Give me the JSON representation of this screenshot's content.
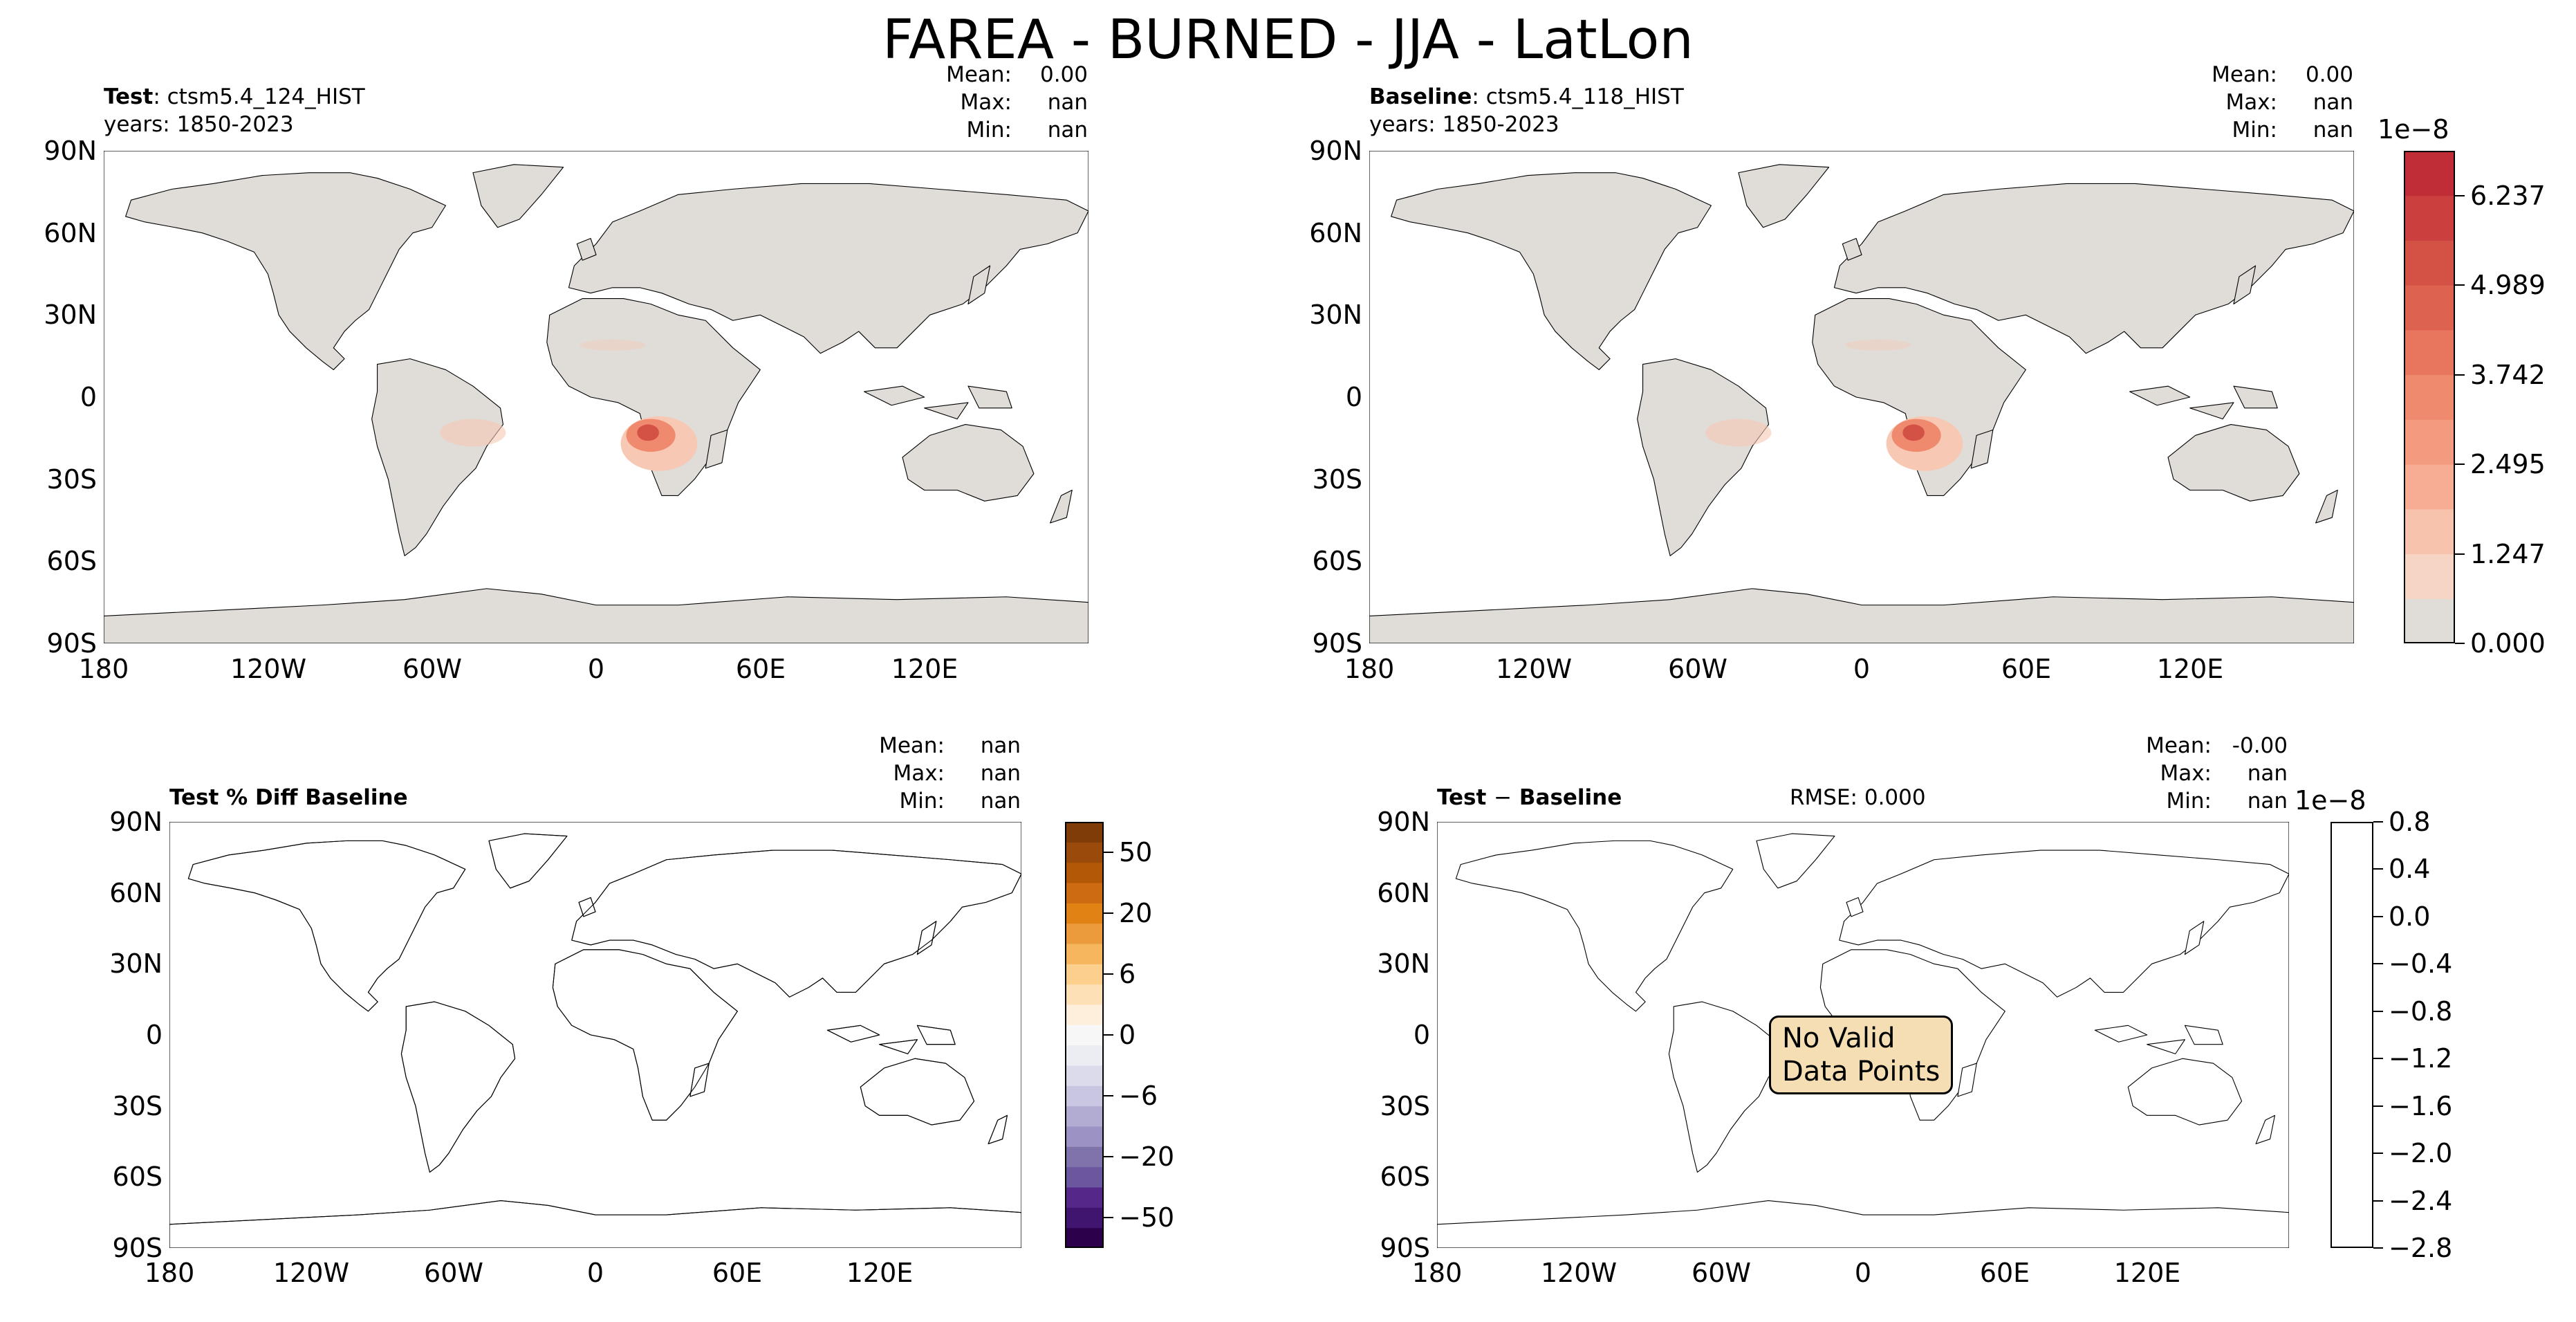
{
  "suptitle": "FAREA - BURNED - JJA - LatLon",
  "panels": {
    "test": {
      "name_label": "Test",
      "case": "ctsm5.4_124_HIST",
      "years": "years: 1850-2023",
      "stats": [
        {
          "k": "Mean:",
          "v": "0.00"
        },
        {
          "k": "Max:",
          "v": "nan"
        },
        {
          "k": "Min:",
          "v": "nan"
        }
      ]
    },
    "baseline": {
      "name_label": "Baseline",
      "case": "ctsm5.4_118_HIST",
      "years": "years: 1850-2023",
      "stats": [
        {
          "k": "Mean:",
          "v": "0.00"
        },
        {
          "k": "Max:",
          "v": "nan"
        },
        {
          "k": "Min:",
          "v": "nan"
        }
      ]
    },
    "pctdiff": {
      "title": "Test % Diff Baseline",
      "stats": [
        {
          "k": "Mean:",
          "v": "nan"
        },
        {
          "k": "Max:",
          "v": "nan"
        },
        {
          "k": "Min:",
          "v": "nan"
        }
      ]
    },
    "diff": {
      "title_a": "Test",
      "title_op": "−",
      "title_b": "Baseline",
      "rmse": "RMSE: 0.000",
      "stats": [
        {
          "k": "Mean:",
          "v": "-0.00"
        },
        {
          "k": "Max:",
          "v": "nan"
        },
        {
          "k": "Min:",
          "v": "nan"
        }
      ],
      "no_data": "No Valid\nData Points"
    }
  },
  "axes": {
    "lat_ticks": [
      "90N",
      "60N",
      "30N",
      "0",
      "30S",
      "60S",
      "90S"
    ],
    "lon_ticks": [
      "180",
      "120W",
      "60W",
      "0",
      "60E",
      "120E"
    ]
  },
  "colorbars": {
    "main": {
      "exponent": "1e−8",
      "ticks": [
        "6.237",
        "4.989",
        "3.742",
        "2.495",
        "1.247",
        "0.000"
      ],
      "colors": [
        "#e0dcd8",
        "#f6d5c4",
        "#f8c3ad",
        "#f7ad93",
        "#f49a7e",
        "#ef8a6e",
        "#e8755d",
        "#de6250",
        "#d45245",
        "#cb403e",
        "#c12d37"
      ]
    },
    "pct": {
      "ticks": [
        "50",
        "20",
        "6",
        "0",
        "−6",
        "−20",
        "−50"
      ],
      "colors": [
        "#7f3b08",
        "#9a4a0a",
        "#b35806",
        "#cc6b12",
        "#e08214",
        "#eb9a3c",
        "#f6b65e",
        "#fdcf8c",
        "#fee0b6",
        "#fdefdc",
        "#f7f7f7",
        "#ececf3",
        "#dcdbec",
        "#c8c6e1",
        "#b2abd2",
        "#9c93c4",
        "#8073ac",
        "#6b57a0",
        "#542788",
        "#3f1570",
        "#2d004b"
      ]
    },
    "diff": {
      "exponent": "1e−8",
      "ticks": [
        "0.8",
        "0.4",
        "0.0",
        "−0.4",
        "−0.8",
        "−1.2",
        "−1.6",
        "−2.0",
        "−2.4",
        "−2.8"
      ]
    }
  },
  "colors": {
    "land": "#e0dcd8",
    "burn_light": "#f7c8b4",
    "burn_mid": "#ef8a6e",
    "burn_dark": "#d45245",
    "orange": "#e08214",
    "purple": "#542788",
    "lavender": "#c8c6e1"
  }
}
